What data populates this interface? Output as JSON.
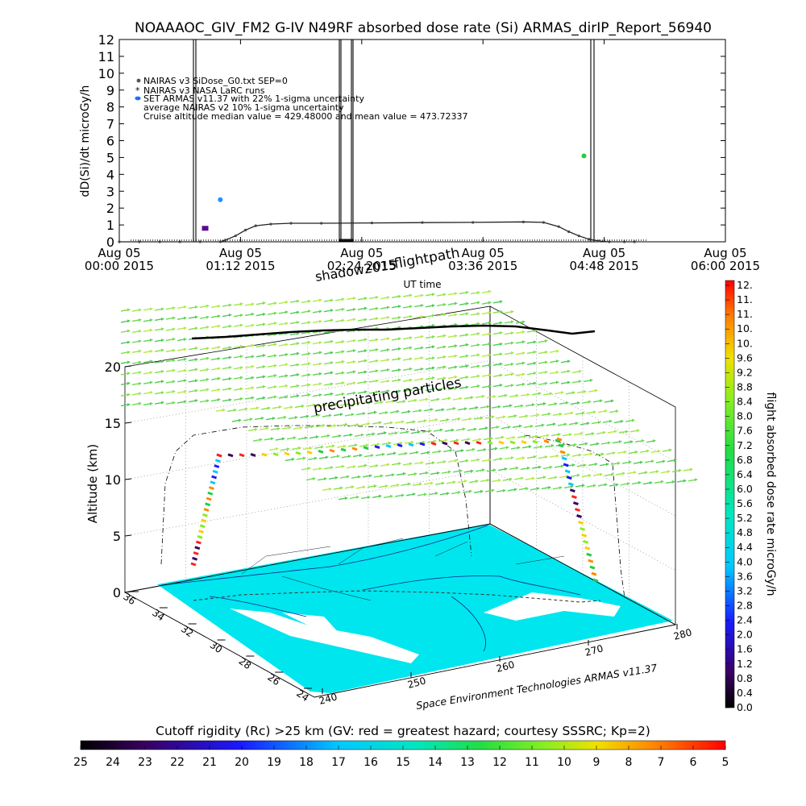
{
  "title": "NOAAAOC_GIV_FM2 G-IV    N49RF   absorbed dose rate (Si) ARMAS_dirIP_Report_56940",
  "chart_data": [
    {
      "type": "line",
      "ylabel": "dD(Si)/dt microGy/h",
      "xlabel": "UT time",
      "ylim": [
        0,
        12
      ],
      "yticks": [
        "0",
        "1",
        "2",
        "3",
        "4",
        "5",
        "6",
        "7",
        "8",
        "9",
        "10",
        "11",
        "12"
      ],
      "xticks": [
        [
          "Aug 05",
          "00:00 2015"
        ],
        [
          "Aug 05",
          "01:12 2015"
        ],
        [
          "Aug 05",
          "02:24 2015"
        ],
        [
          "Aug 05",
          "03:36 2015"
        ],
        [
          "Aug 05",
          "04:48 2015"
        ],
        [
          "Aug 05",
          "06:00 2015"
        ]
      ],
      "legend": [
        "NAIRAS v3 SiDose_G0.txt SEP=0",
        "NAIRAS v3 NASA LaRC runs",
        "SET ARMAS v11.37 with 22% 1-sigma uncertainty",
        "average NAIRAS v2 10% 1-sigma uncertainty",
        "Cruise altitude median value = 429.48000 and mean value = 473.72337"
      ],
      "series": [
        {
          "name": "NAIRAS v3 SiDose_G0.txt SEP=0",
          "x_hours": [
            0.0,
            0.2,
            0.4,
            0.6,
            0.8,
            1.0,
            1.05,
            1.15,
            1.25,
            1.35,
            1.5,
            1.7,
            2.0,
            2.5,
            3.0,
            3.5,
            4.0,
            4.2,
            4.35,
            4.45,
            4.55,
            4.65,
            4.75,
            4.85,
            5.0,
            5.1
          ],
          "values": [
            0,
            0,
            0,
            0,
            0,
            0,
            0.1,
            0.35,
            0.7,
            0.95,
            1.05,
            1.1,
            1.1,
            1.12,
            1.14,
            1.15,
            1.18,
            1.15,
            0.9,
            0.6,
            0.35,
            0.15,
            0.05,
            0,
            0,
            0
          ]
        },
        {
          "name": "SET ARMAS v11.37 with 22% 1-sigma uncertainty",
          "points": [
            {
              "x_hours": 1.0,
              "value": 2.5,
              "color": "#1e90ff"
            },
            {
              "x_hours": 0.85,
              "value": 0.8,
              "color": "#5b0a91"
            },
            {
              "x_hours": 4.6,
              "value": 5.1,
              "color": "#22cc44"
            }
          ]
        }
      ]
    },
    {
      "type": "scatter",
      "title": "flight path over cutoff rigidity map",
      "zlabel": "Altitude (km)",
      "zticks": [
        "0",
        "5",
        "10",
        "15",
        "20"
      ],
      "lat_ticks": [
        "36",
        "34",
        "32",
        "30",
        "28",
        "26",
        "24"
      ],
      "lon_ticks": [
        "240",
        "250",
        "260",
        "270",
        "280"
      ],
      "annotations": [
        "flightpath",
        "shadow2015",
        "precipitating particles",
        "UT time"
      ],
      "credit": "Space Environment Technologies ARMAS v11.37",
      "colorbar_label": "flight absorbed dose rate microGy/h",
      "colorbar_ticks": [
        "0.0",
        "0.4",
        "0.8",
        "1.2",
        "1.6",
        "2.0",
        "2.4",
        "2.8",
        "3.2",
        "3.6",
        "4.0",
        "4.4",
        "4.8",
        "5.2",
        "5.6",
        "6.0",
        "6.4",
        "6.8",
        "7.2",
        "7.6",
        "8.0",
        "8.4",
        "8.8",
        "9.2",
        "9.6",
        "10.",
        "10.",
        "11.",
        "11.",
        "12."
      ],
      "colorbar_range": [
        0,
        12
      ]
    },
    {
      "type": "heatmap",
      "title": "Cutoff rigidity (Rc) >25 km (GV: red = greatest hazard; courtesy SSSRC; Kp=2)",
      "colorbar_ticks": [
        "25",
        "24",
        "23",
        "22",
        "21",
        "20",
        "19",
        "18",
        "17",
        "16",
        "15",
        "14",
        "13",
        "12",
        "11",
        "10",
        "9",
        "8",
        "7",
        "6",
        "5"
      ],
      "colorbar_range": [
        25,
        5
      ]
    }
  ]
}
